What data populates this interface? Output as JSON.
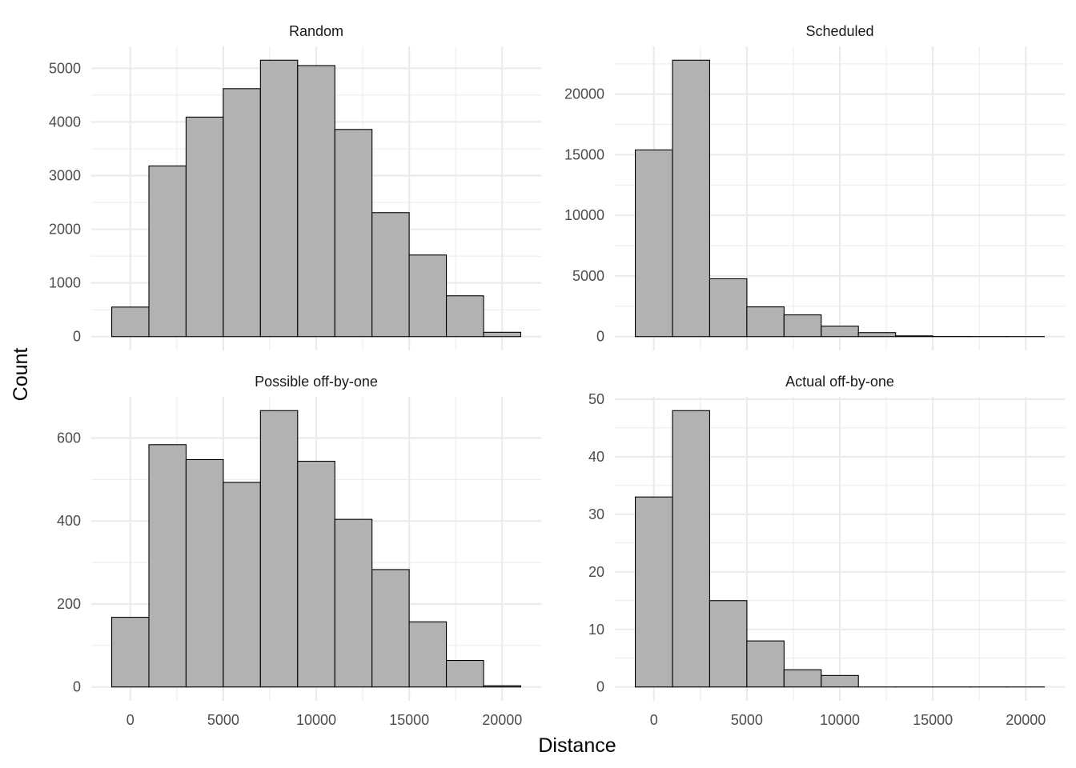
{
  "chart_data": {
    "type": "bar",
    "subtype": "faceted histogram",
    "xlabel": "Distance",
    "ylabel": "Count",
    "bin_width": 2000,
    "bin_centers": [
      0,
      2000,
      4000,
      6000,
      8000,
      10000,
      12000,
      14000,
      16000,
      18000,
      20000
    ],
    "xlim": [
      -1000,
      21000
    ],
    "x_ticks": [
      0,
      5000,
      10000,
      15000,
      20000
    ],
    "x_tick_labels": [
      "0",
      "5000",
      "10000",
      "15000",
      "20000"
    ],
    "grid": true,
    "colors": {
      "bar_fill": "#b2b2b2",
      "bar_outline": "#000000",
      "grid": "#ebebeb"
    },
    "panels": [
      {
        "title": "Random",
        "values": [
          550,
          3180,
          4090,
          4620,
          5150,
          5050,
          3860,
          2310,
          1520,
          760,
          80
        ],
        "y_ticks": [
          0,
          1000,
          2000,
          3000,
          4000,
          5000
        ],
        "y_tick_labels": [
          "0",
          "1000",
          "2000",
          "3000",
          "4000",
          "5000"
        ]
      },
      {
        "title": "Scheduled",
        "values": [
          15400,
          22800,
          4770,
          2450,
          1790,
          860,
          330,
          60,
          10,
          5,
          2
        ],
        "y_ticks": [
          0,
          5000,
          10000,
          15000,
          20000
        ],
        "y_tick_labels": [
          "0",
          "5000",
          "10000",
          "15000",
          "20000"
        ]
      },
      {
        "title": "Possible off-by-one",
        "values": [
          168,
          584,
          548,
          493,
          666,
          544,
          404,
          283,
          157,
          64,
          3
        ],
        "y_ticks": [
          0,
          200,
          400,
          600
        ],
        "y_tick_labels": [
          "0",
          "200",
          "400",
          "600"
        ]
      },
      {
        "title": "Actual off-by-one",
        "values": [
          33,
          48,
          15,
          8,
          3,
          2,
          0,
          0,
          0,
          0,
          0
        ],
        "y_ticks": [
          0,
          10,
          20,
          30,
          40,
          50
        ],
        "y_tick_labels": [
          "0",
          "10",
          "20",
          "30",
          "40",
          "50"
        ]
      }
    ]
  }
}
